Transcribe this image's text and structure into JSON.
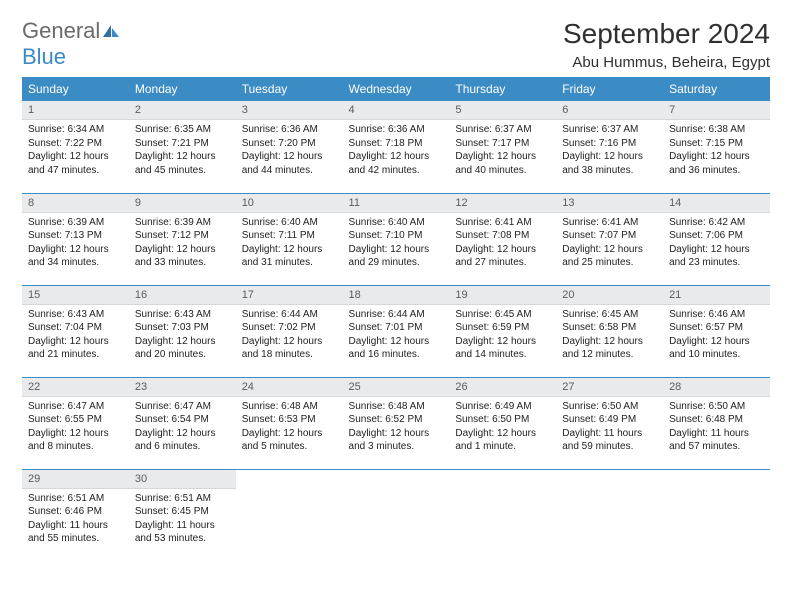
{
  "brand": {
    "word1": "General",
    "word2": "Blue"
  },
  "title": "September 2024",
  "location": "Abu Hummus, Beheira, Egypt",
  "colors": {
    "header_bg": "#3b8bc4",
    "header_text": "#ffffff",
    "daynum_bg": "#e9eaeb",
    "daynum_text": "#5c5c5c",
    "rule": "#3b8bc4",
    "body_text": "#222222",
    "page_bg": "#ffffff",
    "logo_gray": "#6a6a6a",
    "logo_blue": "#3b8bc4"
  },
  "columns": [
    "Sunday",
    "Monday",
    "Tuesday",
    "Wednesday",
    "Thursday",
    "Friday",
    "Saturday"
  ],
  "weeks": [
    [
      {
        "n": "1",
        "sunrise": "Sunrise: 6:34 AM",
        "sunset": "Sunset: 7:22 PM",
        "daylight": "Daylight: 12 hours and 47 minutes."
      },
      {
        "n": "2",
        "sunrise": "Sunrise: 6:35 AM",
        "sunset": "Sunset: 7:21 PM",
        "daylight": "Daylight: 12 hours and 45 minutes."
      },
      {
        "n": "3",
        "sunrise": "Sunrise: 6:36 AM",
        "sunset": "Sunset: 7:20 PM",
        "daylight": "Daylight: 12 hours and 44 minutes."
      },
      {
        "n": "4",
        "sunrise": "Sunrise: 6:36 AM",
        "sunset": "Sunset: 7:18 PM",
        "daylight": "Daylight: 12 hours and 42 minutes."
      },
      {
        "n": "5",
        "sunrise": "Sunrise: 6:37 AM",
        "sunset": "Sunset: 7:17 PM",
        "daylight": "Daylight: 12 hours and 40 minutes."
      },
      {
        "n": "6",
        "sunrise": "Sunrise: 6:37 AM",
        "sunset": "Sunset: 7:16 PM",
        "daylight": "Daylight: 12 hours and 38 minutes."
      },
      {
        "n": "7",
        "sunrise": "Sunrise: 6:38 AM",
        "sunset": "Sunset: 7:15 PM",
        "daylight": "Daylight: 12 hours and 36 minutes."
      }
    ],
    [
      {
        "n": "8",
        "sunrise": "Sunrise: 6:39 AM",
        "sunset": "Sunset: 7:13 PM",
        "daylight": "Daylight: 12 hours and 34 minutes."
      },
      {
        "n": "9",
        "sunrise": "Sunrise: 6:39 AM",
        "sunset": "Sunset: 7:12 PM",
        "daylight": "Daylight: 12 hours and 33 minutes."
      },
      {
        "n": "10",
        "sunrise": "Sunrise: 6:40 AM",
        "sunset": "Sunset: 7:11 PM",
        "daylight": "Daylight: 12 hours and 31 minutes."
      },
      {
        "n": "11",
        "sunrise": "Sunrise: 6:40 AM",
        "sunset": "Sunset: 7:10 PM",
        "daylight": "Daylight: 12 hours and 29 minutes."
      },
      {
        "n": "12",
        "sunrise": "Sunrise: 6:41 AM",
        "sunset": "Sunset: 7:08 PM",
        "daylight": "Daylight: 12 hours and 27 minutes."
      },
      {
        "n": "13",
        "sunrise": "Sunrise: 6:41 AM",
        "sunset": "Sunset: 7:07 PM",
        "daylight": "Daylight: 12 hours and 25 minutes."
      },
      {
        "n": "14",
        "sunrise": "Sunrise: 6:42 AM",
        "sunset": "Sunset: 7:06 PM",
        "daylight": "Daylight: 12 hours and 23 minutes."
      }
    ],
    [
      {
        "n": "15",
        "sunrise": "Sunrise: 6:43 AM",
        "sunset": "Sunset: 7:04 PM",
        "daylight": "Daylight: 12 hours and 21 minutes."
      },
      {
        "n": "16",
        "sunrise": "Sunrise: 6:43 AM",
        "sunset": "Sunset: 7:03 PM",
        "daylight": "Daylight: 12 hours and 20 minutes."
      },
      {
        "n": "17",
        "sunrise": "Sunrise: 6:44 AM",
        "sunset": "Sunset: 7:02 PM",
        "daylight": "Daylight: 12 hours and 18 minutes."
      },
      {
        "n": "18",
        "sunrise": "Sunrise: 6:44 AM",
        "sunset": "Sunset: 7:01 PM",
        "daylight": "Daylight: 12 hours and 16 minutes."
      },
      {
        "n": "19",
        "sunrise": "Sunrise: 6:45 AM",
        "sunset": "Sunset: 6:59 PM",
        "daylight": "Daylight: 12 hours and 14 minutes."
      },
      {
        "n": "20",
        "sunrise": "Sunrise: 6:45 AM",
        "sunset": "Sunset: 6:58 PM",
        "daylight": "Daylight: 12 hours and 12 minutes."
      },
      {
        "n": "21",
        "sunrise": "Sunrise: 6:46 AM",
        "sunset": "Sunset: 6:57 PM",
        "daylight": "Daylight: 12 hours and 10 minutes."
      }
    ],
    [
      {
        "n": "22",
        "sunrise": "Sunrise: 6:47 AM",
        "sunset": "Sunset: 6:55 PM",
        "daylight": "Daylight: 12 hours and 8 minutes."
      },
      {
        "n": "23",
        "sunrise": "Sunrise: 6:47 AM",
        "sunset": "Sunset: 6:54 PM",
        "daylight": "Daylight: 12 hours and 6 minutes."
      },
      {
        "n": "24",
        "sunrise": "Sunrise: 6:48 AM",
        "sunset": "Sunset: 6:53 PM",
        "daylight": "Daylight: 12 hours and 5 minutes."
      },
      {
        "n": "25",
        "sunrise": "Sunrise: 6:48 AM",
        "sunset": "Sunset: 6:52 PM",
        "daylight": "Daylight: 12 hours and 3 minutes."
      },
      {
        "n": "26",
        "sunrise": "Sunrise: 6:49 AM",
        "sunset": "Sunset: 6:50 PM",
        "daylight": "Daylight: 12 hours and 1 minute."
      },
      {
        "n": "27",
        "sunrise": "Sunrise: 6:50 AM",
        "sunset": "Sunset: 6:49 PM",
        "daylight": "Daylight: 11 hours and 59 minutes."
      },
      {
        "n": "28",
        "sunrise": "Sunrise: 6:50 AM",
        "sunset": "Sunset: 6:48 PM",
        "daylight": "Daylight: 11 hours and 57 minutes."
      }
    ],
    [
      {
        "n": "29",
        "sunrise": "Sunrise: 6:51 AM",
        "sunset": "Sunset: 6:46 PM",
        "daylight": "Daylight: 11 hours and 55 minutes."
      },
      {
        "n": "30",
        "sunrise": "Sunrise: 6:51 AM",
        "sunset": "Sunset: 6:45 PM",
        "daylight": "Daylight: 11 hours and 53 minutes."
      },
      null,
      null,
      null,
      null,
      null
    ]
  ]
}
